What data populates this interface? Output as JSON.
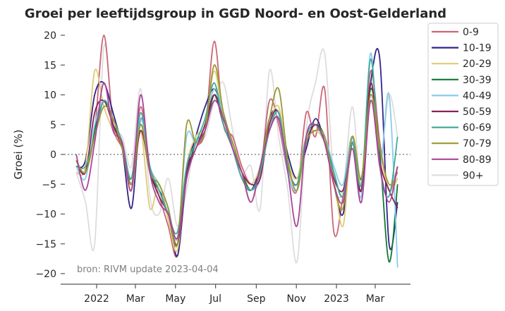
{
  "chart_data": {
    "type": "line",
    "title": "Groei per leeftijdsgroup in GGD Noord- en Oost-Gelderland",
    "xlabel": "",
    "ylabel": "Groei (%)",
    "annotation": "bron: RIVM update 2023-04-04",
    "ylim": [
      -21.5,
      21.5
    ],
    "yticks": [
      -20,
      -15,
      -10,
      -5,
      0,
      5,
      10,
      15,
      20
    ],
    "ytick_labels": [
      "−20",
      "−15",
      "−10",
      "−5",
      "0",
      "5",
      "10",
      "15",
      "20"
    ],
    "xlim": [
      "2021-11-08",
      "2023-04-30"
    ],
    "xticks": [
      "2022-01-01",
      "2022-03-01",
      "2022-05-01",
      "2022-07-01",
      "2022-09-01",
      "2022-11-01",
      "2023-01-01",
      "2023-03-01"
    ],
    "xtick_labels": [
      "2022",
      "Mar",
      "May",
      "Jul",
      "Sep",
      "Nov",
      "2023",
      "Mar"
    ],
    "reference_line": 0,
    "legend_position": "outside-right-top",
    "x": [
      "2021-12-01",
      "2021-12-15",
      "2021-12-29",
      "2022-01-12",
      "2022-01-26",
      "2022-02-09",
      "2022-02-23",
      "2022-03-09",
      "2022-03-23",
      "2022-04-06",
      "2022-04-20",
      "2022-05-04",
      "2022-05-18",
      "2022-06-01",
      "2022-06-15",
      "2022-06-29",
      "2022-07-13",
      "2022-07-27",
      "2022-08-10",
      "2022-08-24",
      "2022-09-07",
      "2022-09-21",
      "2022-10-05",
      "2022-10-19",
      "2022-11-02",
      "2022-11-16",
      "2022-11-30",
      "2022-12-14",
      "2022-12-28",
      "2023-01-11",
      "2023-01-25",
      "2023-02-08",
      "2023-02-22",
      "2023-03-08",
      "2023-03-22",
      "2023-04-04"
    ],
    "series": [
      {
        "name": "0-9",
        "color": "#CC6677",
        "values": [
          -1,
          -3,
          4,
          20,
          5,
          1,
          -4,
          8,
          -2,
          -7,
          -12,
          -17,
          -4,
          1,
          4,
          19,
          5,
          3,
          -2,
          -5,
          -3,
          9,
          5,
          -3,
          -6,
          7,
          3,
          11,
          -13,
          -7,
          3,
          -6,
          14,
          2,
          -6,
          -2
        ]
      },
      {
        "name": "10-19",
        "color": "#332288",
        "values": [
          -2,
          -1,
          10,
          12,
          7,
          1,
          -9,
          6,
          -3,
          -6,
          -9,
          -17,
          -3,
          3,
          8,
          11,
          7,
          1,
          -4,
          -6,
          -2,
          6,
          7,
          0,
          -4,
          1,
          6,
          2,
          -5,
          -10,
          2,
          -4,
          12,
          16,
          -15,
          -8
        ]
      },
      {
        "name": "20-29",
        "color": "#DDCC77",
        "values": [
          -3,
          -2,
          14,
          8,
          4,
          1,
          -6,
          4,
          -9,
          -5,
          -11,
          -16,
          -2,
          3,
          5,
          14,
          6,
          2,
          -3,
          -5,
          -2,
          5,
          8,
          -1,
          -4,
          3,
          4,
          2,
          -4,
          -12,
          3,
          -5,
          9,
          1,
          -6,
          -4
        ]
      },
      {
        "name": "30-39",
        "color": "#117733",
        "values": [
          -1,
          -3,
          4,
          9,
          5,
          2,
          -5,
          5,
          -3,
          -6,
          -10,
          -14,
          -4,
          2,
          4,
          10,
          6,
          2,
          -3,
          -6,
          -3,
          4,
          6,
          -2,
          -5,
          2,
          5,
          3,
          -3,
          -7,
          2,
          -6,
          11,
          0,
          -18,
          -5
        ]
      },
      {
        "name": "40-49",
        "color": "#88CCEE",
        "values": [
          -2,
          -4,
          5,
          9,
          6,
          2,
          -4,
          6,
          -2,
          -5,
          -9,
          -14,
          3,
          2,
          5,
          11,
          7,
          1,
          -4,
          -6,
          -4,
          5,
          6,
          -3,
          -6,
          2,
          4,
          3,
          -2,
          -5,
          3,
          -7,
          17,
          -2,
          10,
          -19
        ]
      },
      {
        "name": "50-59",
        "color": "#882255",
        "values": [
          -1,
          -3,
          7,
          9,
          5,
          1,
          -5,
          4,
          -3,
          -7,
          -10,
          -15,
          -3,
          1,
          5,
          10,
          5,
          1,
          -3,
          -5,
          -4,
          5,
          7,
          -2,
          -5,
          2,
          5,
          2,
          -4,
          -6,
          1,
          -6,
          12,
          -1,
          -6,
          -9
        ]
      },
      {
        "name": "60-69",
        "color": "#44AA99",
        "values": [
          -2,
          -2,
          3,
          9,
          6,
          2,
          -4,
          7,
          -2,
          -6,
          -10,
          -13,
          -2,
          2,
          6,
          12,
          5,
          1,
          -4,
          -6,
          -3,
          4,
          7,
          -2,
          -5,
          3,
          5,
          2,
          -3,
          -7,
          2,
          -5,
          16,
          -2,
          -7,
          3
        ]
      },
      {
        "name": "70-79",
        "color": "#999933",
        "values": [
          -1,
          -3,
          3,
          8,
          6,
          1,
          -5,
          5,
          -3,
          -5,
          -9,
          -15,
          5,
          2,
          4,
          15,
          7,
          2,
          -3,
          -8,
          -2,
          6,
          11,
          -1,
          -6,
          2,
          4,
          3,
          -5,
          -9,
          3,
          -4,
          10,
          1,
          -5,
          -3
        ]
      },
      {
        "name": "80-89",
        "color": "#AA4499",
        "values": [
          0,
          -6,
          2,
          12,
          4,
          2,
          -6,
          10,
          -3,
          -8,
          -10,
          -14,
          -4,
          1,
          4,
          9,
          6,
          1,
          -3,
          -8,
          -2,
          4,
          6,
          -3,
          -12,
          3,
          5,
          2,
          -5,
          -8,
          1,
          -8,
          9,
          -2,
          -8,
          -2
        ]
      },
      {
        "name": "90+",
        "color": "#DDDDDD",
        "values": [
          -3,
          -8,
          -15,
          18,
          5,
          3,
          -2,
          11,
          -7,
          -10,
          -4,
          -12,
          -6,
          3,
          3,
          9,
          12,
          4,
          -3,
          -2,
          -9,
          14,
          3,
          -6,
          -18,
          4,
          12,
          17,
          -4,
          -6,
          8,
          -5,
          14,
          -1,
          10,
          3
        ]
      }
    ]
  }
}
